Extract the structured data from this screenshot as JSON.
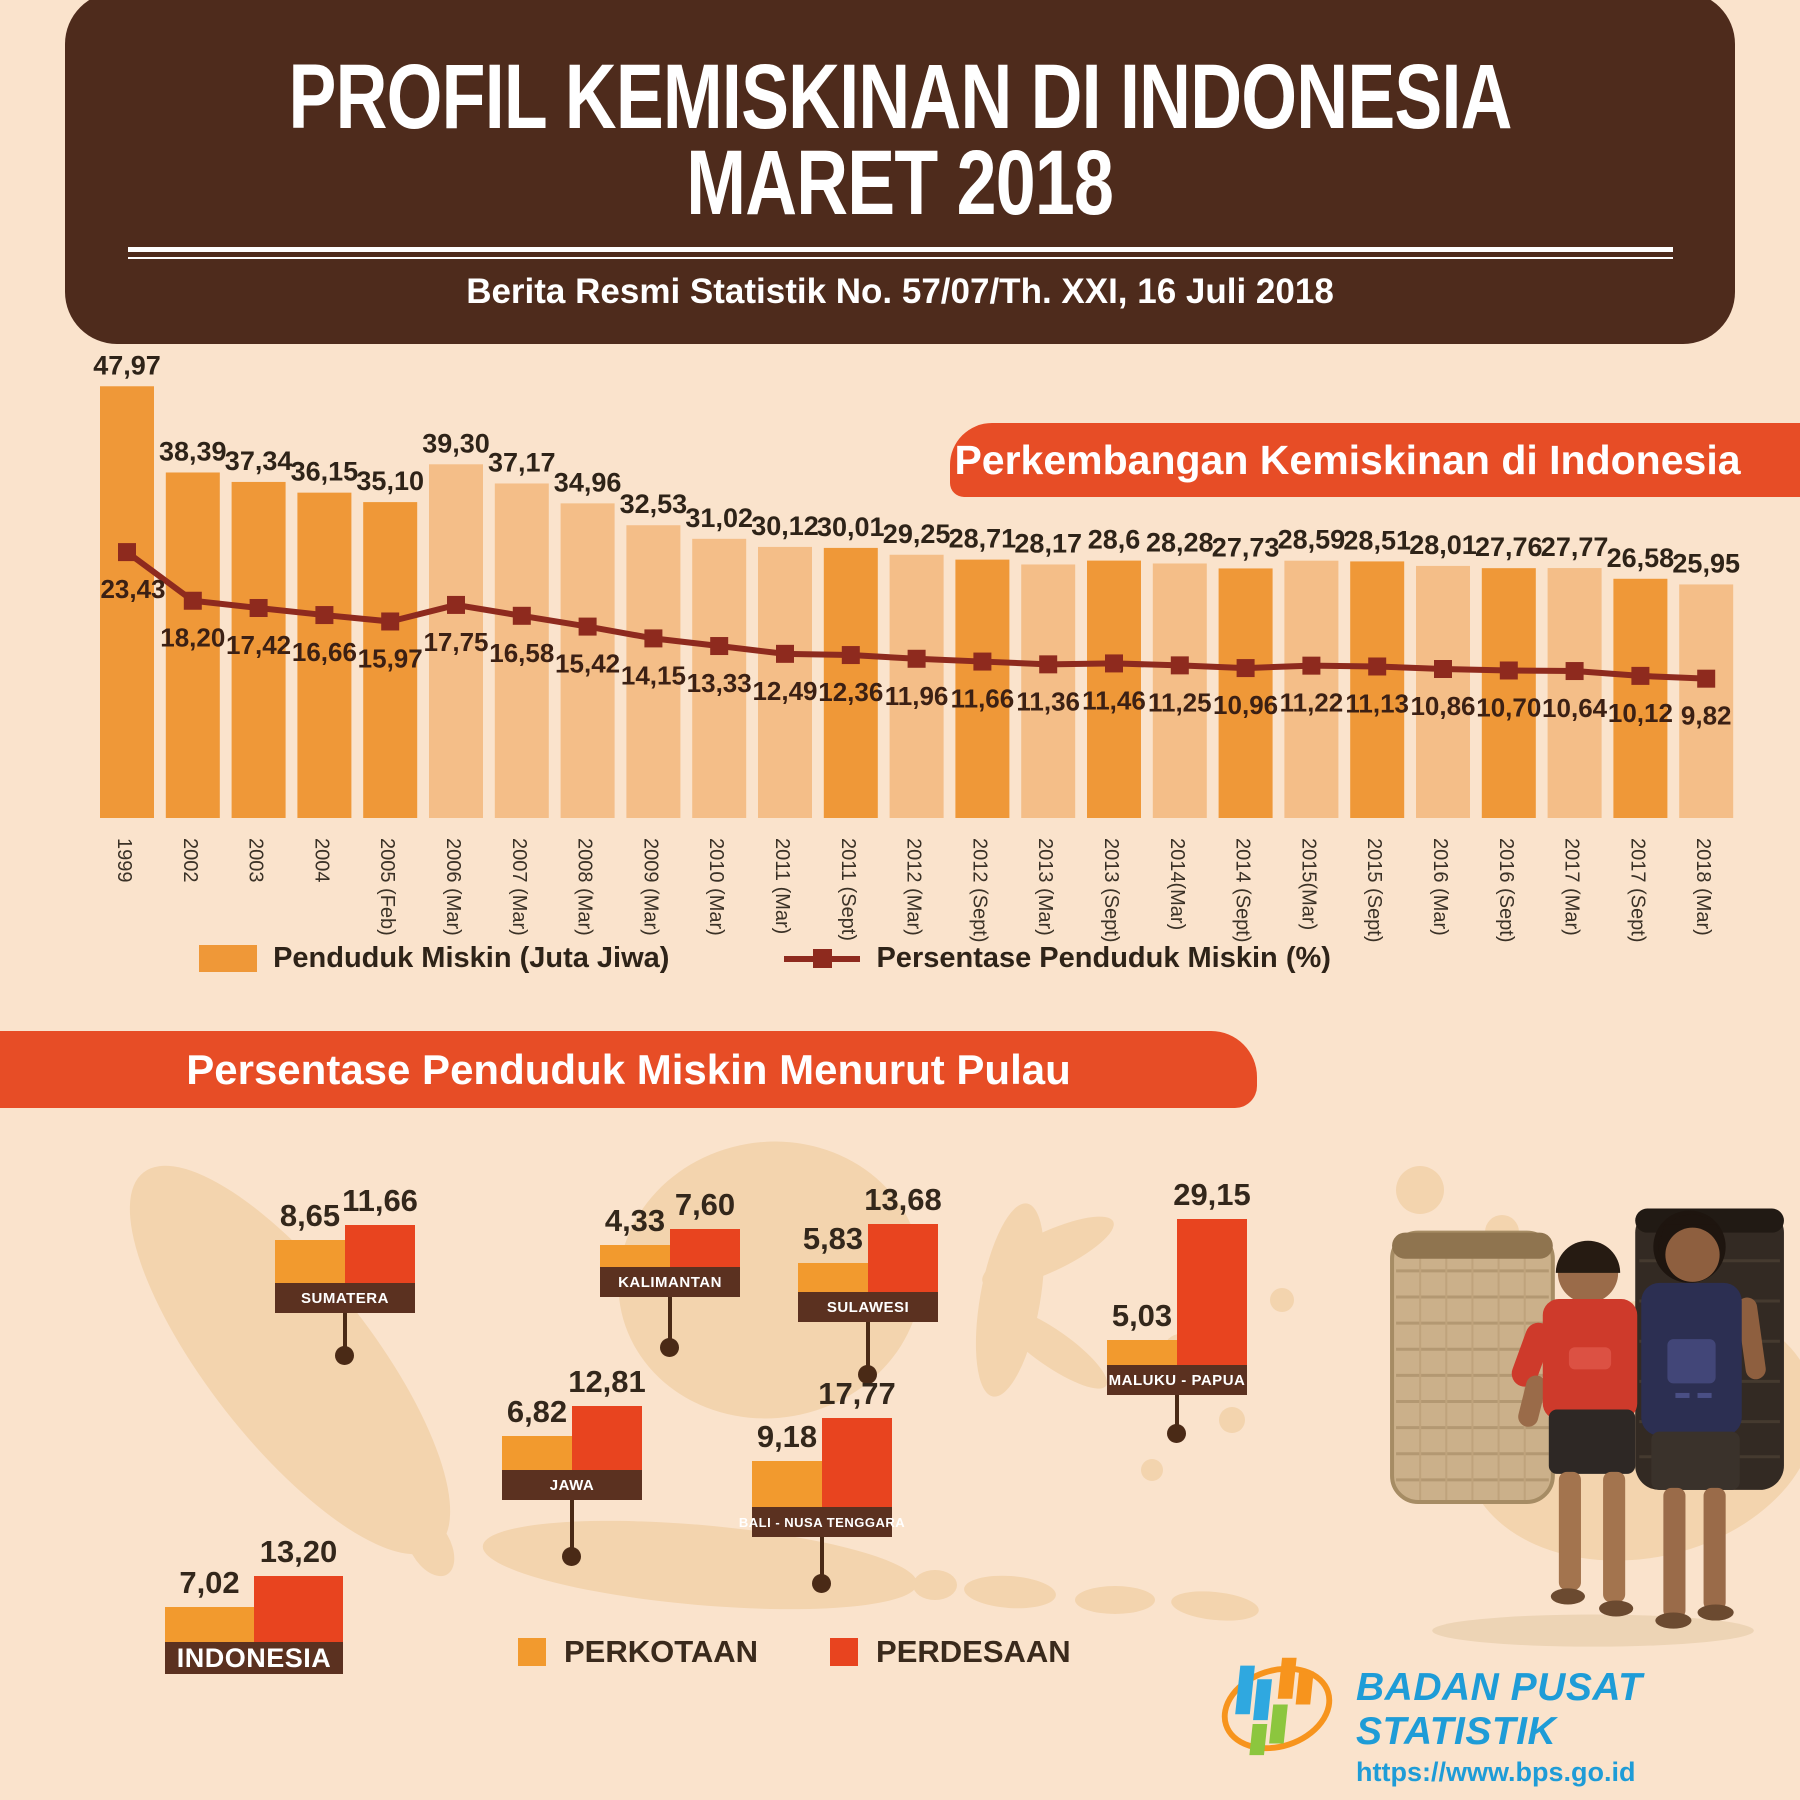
{
  "header": {
    "title_line1": "PROFIL KEMISKINAN DI INDONESIA",
    "title_line2": "MARET 2018",
    "subtitle": "Berita Resmi Statistik No. 57/07/Th. XXI, 16 Juli 2018"
  },
  "section_trend": {
    "banner": "Perkembangan Kemiskinan di Indonesia"
  },
  "section_island": {
    "banner": "Persentase Penduduk Miskin Menurut Pulau"
  },
  "legend_top": {
    "bar": "Penduduk Miskin (Juta Jiwa)",
    "line": "Persentase Penduduk Miskin (%)"
  },
  "legend_bottom": {
    "urban": "PERKOTAAN",
    "rural": "PERDESAAN"
  },
  "footer": {
    "org": "BADAN PUSAT STATISTIK",
    "url": "https://www.bps.go.id"
  },
  "colors": {
    "background": "#FAE3CC",
    "header_brown": "#4E2B1C",
    "banner_red": "#E74D26",
    "bar_dark": "#EF9838",
    "bar_light": "#F4BE88",
    "line": "#8E2A1E",
    "text_dark": "#2E2318",
    "line_label": "#3B2014",
    "axis_label": "#3A3126",
    "mini_orange": "#F29A2E",
    "mini_red": "#E8441F",
    "strip_brown": "#5B3120",
    "stem_brown": "#4A2A16",
    "bps_blue": "#1E9CD7",
    "map": "#F3D4AE"
  },
  "chart_data": [
    {
      "type": "bar",
      "title": "Perkembangan Kemiskinan di Indonesia",
      "grid": false,
      "legend_position": "bottom",
      "categories": [
        "1999",
        "2002",
        "2003",
        "2004",
        "2005 (Feb)",
        "2006 (Mar)",
        "2007 (Mar)",
        "2008 (Mar)",
        "2009 (Mar)",
        "2010 (Mar)",
        "2011 (Mar)",
        "2011 (Sept)",
        "2012 (Mar)",
        "2012 (Sept)",
        "2013 (Mar)",
        "2013 (Sept)",
        "2014(Mar)",
        "2014 (Sept)",
        "2015(Mar)",
        "2015 (Sept)",
        "2016 (Mar)",
        "2016 (Sept)",
        "2017 (Mar)",
        "2017 (Sept)",
        "2018 (Mar)"
      ],
      "series": [
        {
          "name": "Penduduk Miskin (Juta Jiwa)",
          "type": "bar",
          "values": [
            47.97,
            38.39,
            37.34,
            36.15,
            35.1,
            39.3,
            37.17,
            34.96,
            32.53,
            31.02,
            30.12,
            30.01,
            29.25,
            28.71,
            28.17,
            28.6,
            28.28,
            27.73,
            28.59,
            28.51,
            28.01,
            27.76,
            27.77,
            26.58,
            25.95
          ],
          "labels": [
            "47,97",
            "38,39",
            "37,34",
            "36,15",
            "35,10",
            "39,30",
            "37,17",
            "34,96",
            "32,53",
            "31,02",
            "30,12",
            "30,01",
            "29,25",
            "28,71",
            "28,17",
            "28,6",
            "28,28",
            "27,73",
            "28,59",
            "28,51",
            "28,01",
            "27,76",
            "27,77",
            "26,58",
            "25,95"
          ]
        },
        {
          "name": "Persentase Penduduk Miskin (%)",
          "type": "line",
          "values": [
            23.43,
            18.2,
            17.42,
            16.66,
            15.97,
            17.75,
            16.58,
            15.42,
            14.15,
            13.33,
            12.49,
            12.36,
            11.96,
            11.66,
            11.36,
            11.46,
            11.25,
            10.96,
            11.22,
            11.13,
            10.86,
            10.7,
            10.64,
            10.12,
            9.82
          ],
          "labels": [
            "23,43",
            "18,20",
            "17,42",
            "16,66",
            "15,97",
            "17,75",
            "16,58",
            "15,42",
            "14,15",
            "13,33",
            "12,49",
            "12,36",
            "11,96",
            "11,66",
            "11,36",
            "11,46",
            "11,25",
            "10,96",
            "11,22",
            "11,13",
            "10,86",
            "10,70",
            "10,64",
            "10,12",
            "9,82"
          ]
        }
      ],
      "bar_shades": [
        "dark",
        "dark",
        "dark",
        "dark",
        "dark",
        "light",
        "light",
        "light",
        "light",
        "light",
        "light",
        "dark",
        "light",
        "dark",
        "light",
        "dark",
        "light",
        "dark",
        "light",
        "dark",
        "light",
        "dark",
        "light",
        "dark",
        "light"
      ]
    },
    {
      "type": "bar",
      "title": "Persentase Penduduk Miskin Menurut Pulau",
      "series_names": [
        "PERKOTAAN",
        "PERDESAAN"
      ],
      "groups": [
        {
          "name": "SUMATERA",
          "values": [
            8.65,
            11.66
          ],
          "labels": [
            "8,65",
            "11,66"
          ]
        },
        {
          "name": "KALIMANTAN",
          "values": [
            4.33,
            7.6
          ],
          "labels": [
            "4,33",
            "7,60"
          ]
        },
        {
          "name": "SULAWESI",
          "values": [
            5.83,
            13.68
          ],
          "labels": [
            "5,83",
            "13,68"
          ]
        },
        {
          "name": "MALUKU - PAPUA",
          "values": [
            5.03,
            29.15
          ],
          "labels": [
            "5,03",
            "29,15"
          ]
        },
        {
          "name": "JAWA",
          "values": [
            6.82,
            12.81
          ],
          "labels": [
            "6,82",
            "12,81"
          ]
        },
        {
          "name": "BALI - NUSA TENGGARA",
          "values": [
            9.18,
            17.77
          ],
          "labels": [
            "9,18",
            "17,77"
          ]
        },
        {
          "name": "INDONESIA",
          "values": [
            7.02,
            13.2
          ],
          "labels": [
            "7,02",
            "13,20"
          ]
        }
      ]
    }
  ]
}
